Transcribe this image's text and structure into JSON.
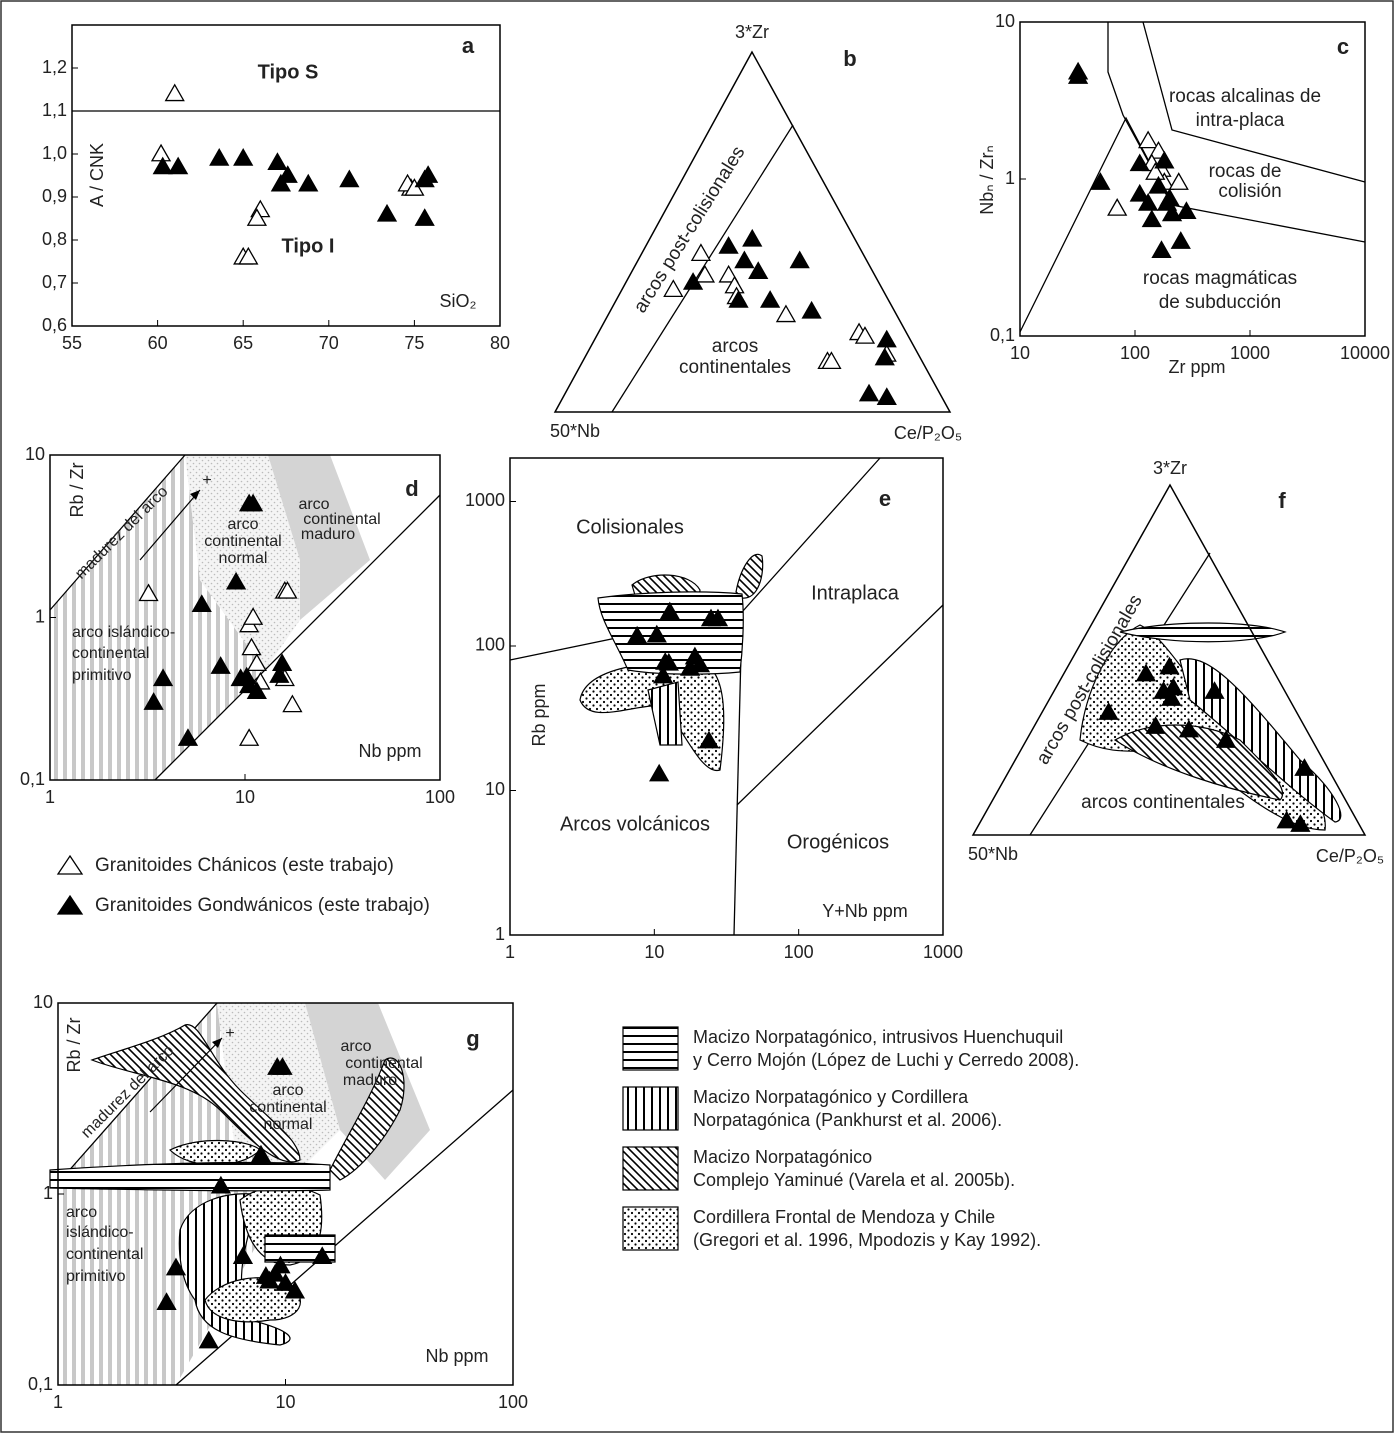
{
  "chart_data": [
    {
      "type": "scatter",
      "title": "a",
      "xlabel": "SiO₂",
      "ylabel": "A / CNK",
      "annotations": [
        "Tipo S",
        "Tipo I"
      ],
      "xlim": [
        55,
        80
      ],
      "ylim": [
        0.6,
        1.3
      ],
      "xticks": [
        55,
        60,
        65,
        70,
        75,
        80
      ],
      "yticks": [
        {
          "value": 0.6,
          "label": "0,6"
        },
        {
          "value": 0.7,
          "label": "0,7"
        },
        {
          "value": 0.8,
          "label": "0,8"
        },
        {
          "value": 0.9,
          "label": "0,9"
        },
        {
          "value": 1.0,
          "label": "1,0"
        },
        {
          "value": 1.1,
          "label": "1,1"
        },
        {
          "value": 1.2,
          "label": "1,2"
        }
      ],
      "xlog": false,
      "ylog": false,
      "series": [
        {
          "color": "#ffffff",
          "x": [
            61,
            60.2,
            66,
            65.8,
            65,
            65.3,
            74.8,
            74.6,
            75
          ],
          "values": [
            1.14,
            1.0,
            0.87,
            0.85,
            0.76,
            0.76,
            0.92,
            0.93,
            0.92
          ]
        },
        {
          "color": "#000000",
          "x": [
            60.3,
            61.2,
            63.6,
            65,
            67,
            67.2,
            67.6,
            68.8,
            71.2,
            73.4,
            75.6,
            75.8,
            75.6
          ],
          "values": [
            0.97,
            0.97,
            0.99,
            0.99,
            0.98,
            0.93,
            0.95,
            0.93,
            0.94,
            0.86,
            0.85,
            0.95,
            0.94
          ]
        }
      ]
    },
    {
      "type": "scatter",
      "title": "c",
      "xlabel": "Zr ppm",
      "ylabel": "Nbₙ / Zrₙ",
      "annotations": [
        "rocas alcalinas de",
        "intra-placa",
        "rocas de",
        "colisión",
        "rocas magmáticas",
        "de subducción"
      ],
      "xlim": [
        10,
        10000
      ],
      "ylim": [
        0.1,
        10
      ],
      "xticks": [
        10,
        100,
        1000,
        10000
      ],
      "yticks": [
        {
          "value": 0.1,
          "label": "0,1"
        },
        1,
        10
      ],
      "xlog": true,
      "ylog": true,
      "series": [
        {
          "color": "#ffffff",
          "x": [
            70,
            130,
            160,
            140,
            170,
            180,
            240,
            150
          ],
          "values": [
            0.65,
            1.75,
            1.5,
            1.25,
            1.15,
            0.95,
            0.95,
            1.1
          ]
        },
        {
          "color": "#000000",
          "x": [
            32,
            32,
            50,
            110,
            110,
            140,
            170,
            180,
            190,
            200,
            210,
            250,
            280,
            160,
            130
          ],
          "values": [
            4.5,
            4.8,
            0.95,
            1.25,
            0.8,
            0.55,
            0.35,
            1.3,
            0.7,
            0.75,
            0.6,
            0.4,
            0.62,
            0.9,
            0.7
          ]
        }
      ]
    },
    {
      "type": "scatter",
      "title": "d",
      "xlabel": "Nb ppm",
      "ylabel": "Rb / Zr",
      "annotations": [
        "madurez del arco",
        "+",
        "arco",
        "continental",
        "normal",
        "arco",
        "continental",
        "maduro",
        "arco islándico-",
        "continental",
        "primitivo"
      ],
      "xlim": [
        1,
        100
      ],
      "ylim": [
        0.1,
        10
      ],
      "xticks": [
        1,
        10,
        100
      ],
      "yticks": [
        {
          "value": 0.1,
          "label": "0,1"
        },
        1,
        10
      ],
      "xlog": true,
      "ylog": true,
      "series": [
        {
          "name": "Granitoides Chánicos (este  trabajo)",
          "color": "#ffffff",
          "x": [
            3.2,
            10.5,
            11,
            10.8,
            11.5,
            12,
            16,
            16,
            17.5,
            10.5,
            16.5
          ],
          "values": [
            1.4,
            0.9,
            1.0,
            0.65,
            0.52,
            0.4,
            1.45,
            0.42,
            0.29,
            0.18,
            1.45
          ]
        },
        {
          "name": "Granitoides Gondwánicos (este  trabajo)",
          "color": "#000000",
          "x": [
            10.5,
            11,
            9,
            6,
            3.8,
            3.4,
            5.1,
            7.5,
            9.5,
            10.2,
            10.5,
            11.5,
            15.5,
            15
          ],
          "values": [
            5.0,
            5.0,
            1.65,
            1.2,
            0.42,
            0.3,
            0.18,
            0.5,
            0.42,
            0.43,
            0.38,
            0.35,
            0.52,
            0.44
          ]
        }
      ]
    },
    {
      "type": "scatter",
      "title": "e",
      "xlabel": "Y+Nb ppm",
      "ylabel": "Rb ppm",
      "annotations": [
        "Colisionales",
        "Intraplaca",
        "Arcos volcánicos",
        "Orogénicos"
      ],
      "xlim": [
        1,
        1000
      ],
      "ylim": [
        1,
        2000
      ],
      "xticks": [
        1,
        10,
        100,
        1000
      ],
      "yticks": [
        1,
        10,
        100,
        1000
      ],
      "xlog": true,
      "ylog": true,
      "series": [
        {
          "color": "#000000",
          "x": [
            12.8,
            7.6,
            10.4,
            11.9,
            12.6,
            11.5,
            19.1,
            20.7,
            17.7,
            24.7,
            27.6,
            23.9,
            10.8
          ],
          "values": [
            172,
            117,
            119,
            77,
            76,
            62,
            84,
            74,
            70,
            154,
            154,
            22,
            13
          ]
        }
      ]
    },
    {
      "type": "scatter",
      "title": "g",
      "xlabel": "Nb ppm",
      "ylabel": "Rb / Zr",
      "annotations": [
        "madurez del arco",
        "+",
        "arco",
        "continental",
        "normal",
        "arco",
        "continental",
        "maduro",
        "arco",
        "islándico-",
        "continental",
        "primitivo"
      ],
      "xlim": [
        1,
        100
      ],
      "ylim": [
        0.1,
        10
      ],
      "xticks": [
        1,
        10,
        100
      ],
      "yticks": [
        {
          "value": 0.1,
          "label": "0,1"
        },
        1,
        10
      ],
      "xlog": true,
      "ylog": true,
      "series": [
        {
          "color": "#000000",
          "x": [
            9.2,
            9.7,
            7.8,
            5.2,
            3.3,
            3.0,
            4.6,
            6.5,
            8.2,
            9.0,
            9.5,
            10,
            11,
            14.5,
            8.5
          ],
          "values": [
            4.6,
            4.6,
            1.6,
            1.1,
            0.41,
            0.27,
            0.17,
            0.47,
            0.37,
            0.38,
            0.42,
            0.34,
            0.31,
            0.47,
            0.35
          ]
        }
      ]
    },
    {
      "type": "ternary",
      "title": "b",
      "axes": [
        "3*Zr",
        "50*Nb",
        "Ce/P₂O₅"
      ],
      "annotations": [
        "arcos post-colisionales",
        "arcos",
        "continentales"
      ],
      "series": [
        {
          "color": "#ffffff",
          "values": [
            [
              44,
              41,
              15
            ],
            [
              34,
              53,
              13
            ],
            [
              38,
              43,
              19
            ],
            [
              38,
              37,
              25
            ],
            [
              35,
              37,
              28
            ],
            [
              32,
              38,
              30
            ],
            [
              27,
              28,
              45
            ],
            [
              14,
              24,
              62
            ],
            [
              14,
              23,
              63
            ],
            [
              22,
              12,
              66
            ],
            [
              21,
              11,
              68
            ],
            [
              16,
              8,
              76
            ]
          ]
        },
        {
          "color": "#000000",
          "values": [
            [
              46,
              33,
              21
            ],
            [
              48,
              26,
              26
            ],
            [
              42,
              31,
              27
            ],
            [
              39,
              29,
              32
            ],
            [
              36,
              47,
              17
            ],
            [
              31,
              38,
              31
            ],
            [
              31,
              30,
              39
            ],
            [
              42,
              17,
              41
            ],
            [
              28,
              21,
              51
            ],
            [
              20,
              6,
              74
            ],
            [
              15,
              9,
              76
            ],
            [
              5,
              18,
              77
            ],
            [
              4,
              14,
              82
            ]
          ]
        }
      ]
    },
    {
      "type": "ternary",
      "title": "f",
      "axes": [
        "3*Zr",
        "50*Nb",
        "Ce/P₂O₅"
      ],
      "annotations": [
        "arcos post-colisionales",
        "arcos continentales"
      ],
      "series": [
        {
          "color": "#000000",
          "values": [
            [
              46,
              33,
              21
            ],
            [
              48,
              26,
              26
            ],
            [
              41,
              31,
              28
            ],
            [
              42,
              28,
              30
            ],
            [
              39,
              30,
              31
            ],
            [
              35,
              48,
              17
            ],
            [
              31,
              38,
              31
            ],
            [
              30,
              30,
              40
            ],
            [
              41,
              18,
              41
            ],
            [
              27,
              22,
              51
            ],
            [
              19,
              6,
              75
            ],
            [
              4,
              18,
              78
            ],
            [
              3,
              15,
              82
            ]
          ]
        }
      ]
    }
  ],
  "pattern_legend": [
    {
      "pattern": "horizontal",
      "lines": [
        "Macizo Norpatagónico,  intrusivos Huenchuquil",
        "y Cerro Mojón (López de Luchi y Cerredo 2008)."
      ]
    },
    {
      "pattern": "vertical",
      "lines": [
        "Macizo Norpatagónico y Cordillera",
        "Norpatagónica  (Pankhurst et al. 2006)."
      ]
    },
    {
      "pattern": "diagonal",
      "lines": [
        "Macizo Norpatagónico",
        "Complejo Yaminué (Varela et al. 2005b)."
      ]
    },
    {
      "pattern": "dots",
      "lines": [
        "Cordillera Frontal de Mendoza y Chile",
        "(Gregori et al. 1996, Mpodozis y Kay 1992)."
      ]
    }
  ]
}
